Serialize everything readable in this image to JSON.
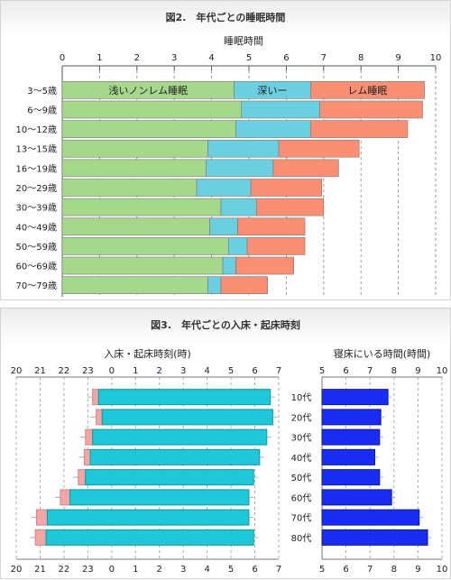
{
  "fig2": {
    "title": "図2.　年代ごとの睡眠時間",
    "chart_data": {
      "type": "bar",
      "orientation": "horizontal",
      "stacked": true,
      "xlabel": "睡眠時間",
      "xlim": [
        0,
        10
      ],
      "xticks": [
        "0",
        "1",
        "2",
        "3",
        "4",
        "5",
        "6",
        "7",
        "8",
        "9",
        "10"
      ],
      "categories": [
        "3〜5歳",
        "6〜9歳",
        "10〜12歳",
        "13〜15歳",
        "16〜19歳",
        "20〜29歳",
        "30〜39歳",
        "40〜49歳",
        "50〜59歳",
        "60〜69歳",
        "70〜79歳"
      ],
      "series": [
        {
          "name": "浅いノンレム睡眠",
          "color": "#a6d88b",
          "values": [
            4.6,
            4.8,
            4.65,
            3.9,
            3.85,
            3.6,
            4.25,
            3.95,
            4.45,
            4.3,
            3.9
          ]
        },
        {
          "name": "深いー",
          "color": "#6ccfdf",
          "values": [
            2.05,
            2.1,
            2.0,
            1.9,
            1.8,
            1.45,
            0.95,
            0.75,
            0.5,
            0.35,
            0.35
          ]
        },
        {
          "name": "レム睡眠",
          "color": "#fb8f74",
          "values": [
            3.05,
            2.75,
            2.6,
            2.15,
            1.75,
            1.9,
            1.8,
            1.8,
            1.55,
            1.55,
            1.25
          ]
        }
      ],
      "grid": "dashed-vertical",
      "legend": "inside-first-bar"
    }
  },
  "fig3": {
    "title": "図3.　年代ごとの入床・起床時刻",
    "chart_data": [
      {
        "type": "bar",
        "orientation": "horizontal",
        "range_bars": true,
        "xlabel": "入床・起床時刻(時)",
        "xticks": [
          "20",
          "21",
          "22",
          "23",
          "0",
          "1",
          "2",
          "3",
          "4",
          "5",
          "6",
          "7"
        ],
        "categories": [
          "10代",
          "20代",
          "30代",
          "40代",
          "50代",
          "60代",
          "70代",
          "80代"
        ],
        "bedtime_range": [
          [
            23.2,
            23.45
          ],
          [
            23.35,
            23.6
          ],
          [
            22.9,
            23.2
          ],
          [
            22.85,
            23.1
          ],
          [
            22.6,
            22.9
          ],
          [
            21.85,
            22.25
          ],
          [
            20.85,
            21.3
          ],
          [
            20.8,
            21.25
          ]
        ],
        "wake_range": [
          [
            23.45,
            30.65
          ],
          [
            23.6,
            30.75
          ],
          [
            23.2,
            30.5
          ],
          [
            23.1,
            30.2
          ],
          [
            22.9,
            29.95
          ],
          [
            22.25,
            29.75
          ],
          [
            21.3,
            29.75
          ],
          [
            21.25,
            29.95
          ]
        ],
        "colors": {
          "bed": "#f4a6a6",
          "wake": "#1ec8d8"
        },
        "error_bars": true
      },
      {
        "type": "bar",
        "orientation": "horizontal",
        "xlabel": "寝床にいる時間(時間)",
        "xlim": [
          5,
          10
        ],
        "xticks": [
          "5",
          "6",
          "7",
          "8",
          "9",
          "10"
        ],
        "categories": [
          "10代",
          "20代",
          "30代",
          "40代",
          "50代",
          "60代",
          "70代",
          "80代"
        ],
        "values": [
          7.75,
          7.45,
          7.4,
          7.2,
          7.4,
          7.9,
          9.05,
          9.4
        ],
        "color": "#1a2cf0",
        "error_bars": true
      }
    ]
  }
}
